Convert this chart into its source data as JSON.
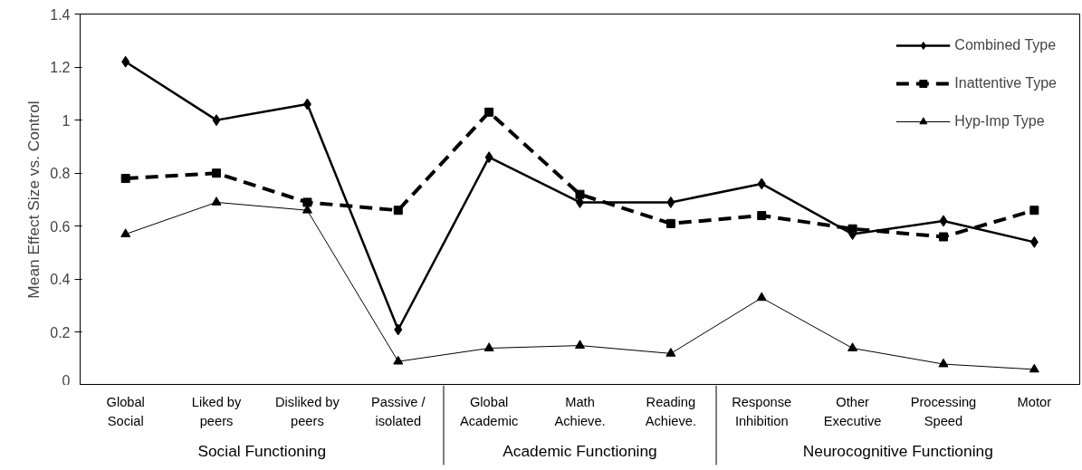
{
  "chart_data": {
    "type": "line",
    "ylabel": "Mean Effect Size vs. Control",
    "categories": [
      "Global\nSocial",
      "Liked by\npeers",
      "Disliked by\npeers",
      "Passive /\nisolated",
      "Global\nAcademic",
      "Math\nAchieve.",
      "Reading\nAchieve.",
      "Response\nInhibition",
      "Other\nExecutive",
      "Processing\nSpeed",
      "Motor"
    ],
    "series": [
      {
        "name": "Combined Type",
        "color": "#000000",
        "marker": "diamond",
        "line_style": "solid",
        "values": [
          1.22,
          1.0,
          1.06,
          0.21,
          0.86,
          0.69,
          0.69,
          0.76,
          0.57,
          0.62,
          0.54
        ]
      },
      {
        "name": "Inattentive Type",
        "color": "#000000",
        "marker": "square",
        "line_style": "dashed",
        "values": [
          0.78,
          0.8,
          0.69,
          0.66,
          1.03,
          0.72,
          0.61,
          0.64,
          0.59,
          0.56,
          0.66
        ]
      },
      {
        "name": "Hyp-Imp Type",
        "color": "#000000",
        "marker": "triangle",
        "line_style": "solid",
        "values": [
          0.57,
          0.69,
          0.66,
          0.09,
          0.14,
          0.15,
          0.12,
          0.33,
          0.14,
          0.08,
          0.06
        ]
      }
    ],
    "ylim": [
      0,
      1.4
    ],
    "yticks": [
      0,
      0.2,
      0.4,
      0.6,
      0.8,
      1,
      1.2,
      1.4
    ],
    "annotations": [
      "Social Functioning",
      "Academic Functioning",
      "Neurocognitive Functioning"
    ],
    "grid": false,
    "legend": "top right"
  }
}
